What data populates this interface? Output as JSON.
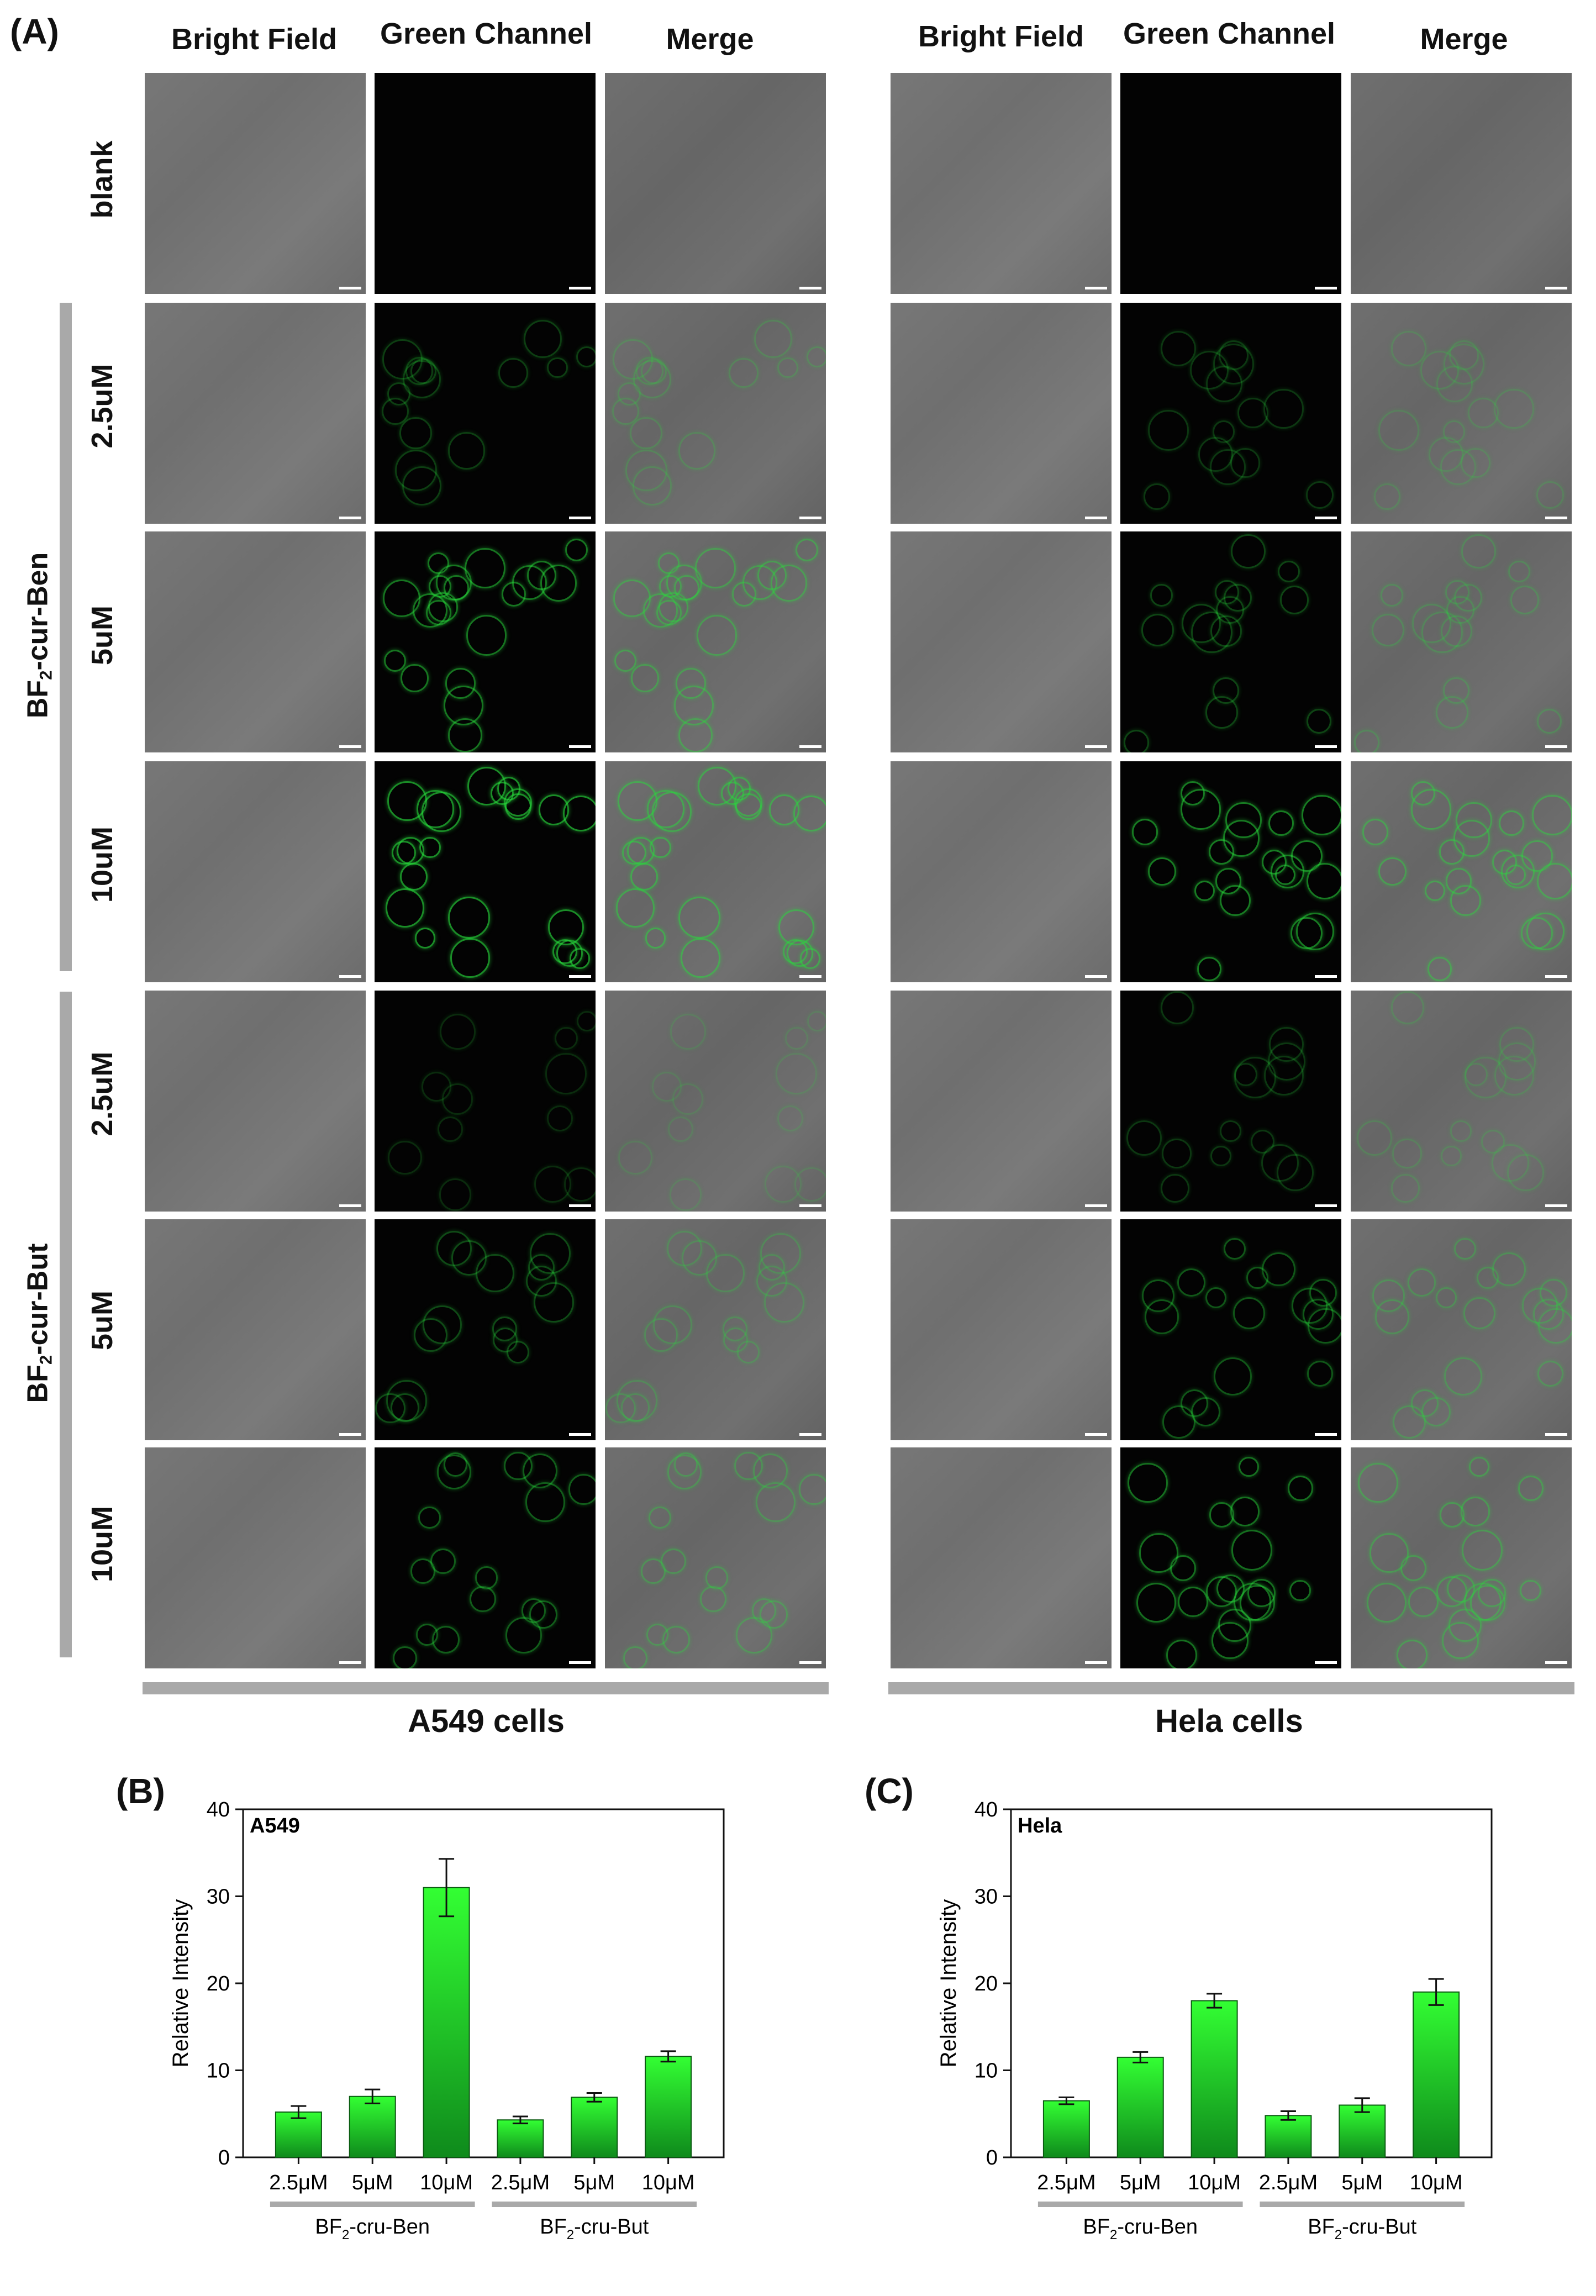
{
  "figure": {
    "panel_a_label": "(A)",
    "panel_b_label": "(B)",
    "panel_c_label": "(C)",
    "column_headers": [
      "Bright Field",
      "Green Channel",
      "Merge"
    ],
    "row_labels": [
      "blank",
      "2.5uM",
      "5uM",
      "10uM",
      "2.5uM",
      "5uM",
      "10uM"
    ],
    "group_labels": [
      {
        "prefix": "BF",
        "sub": "2",
        "suffix": "-cur-Ben"
      },
      {
        "prefix": "BF",
        "sub": "2",
        "suffix": "-cur-But"
      }
    ],
    "cell_labels": [
      "A549 cells",
      "Hela cells"
    ],
    "green_intensity": {
      "A549": [
        0,
        0.35,
        0.8,
        1.0,
        0.2,
        0.45,
        0.6
      ],
      "Hela": [
        0,
        0.3,
        0.4,
        0.85,
        0.3,
        0.55,
        0.75
      ]
    }
  },
  "chart_data": [
    {
      "type": "bar",
      "title": "A549",
      "ylabel": "Relative Intensity",
      "ylim": [
        0,
        40
      ],
      "yticks": [
        0,
        10,
        20,
        30,
        40
      ],
      "categories": [
        "2.5μM",
        "5μM",
        "10μM",
        "2.5μM",
        "5μM",
        "10μM"
      ],
      "groups": [
        {
          "prefix": "BF",
          "sub": "2",
          "suffix": "-cru-Ben"
        },
        {
          "prefix": "BF",
          "sub": "2",
          "suffix": "-cru-But"
        }
      ],
      "values": [
        5.2,
        7.0,
        31.0,
        4.3,
        6.9,
        11.6
      ],
      "errors": [
        0.7,
        0.8,
        3.3,
        0.4,
        0.5,
        0.6
      ],
      "bar_color_top": "#33ff33",
      "bar_color_bottom": "#0f8a1c"
    },
    {
      "type": "bar",
      "title": "Hela",
      "ylabel": "Relative Intensity",
      "ylim": [
        0,
        40
      ],
      "yticks": [
        0,
        10,
        20,
        30,
        40
      ],
      "categories": [
        "2.5μM",
        "5μM",
        "10μM",
        "2.5μM",
        "5μM",
        "10μM"
      ],
      "groups": [
        {
          "prefix": "BF",
          "sub": "2",
          "suffix": "-cru-Ben"
        },
        {
          "prefix": "BF",
          "sub": "2",
          "suffix": "-cru-But"
        }
      ],
      "values": [
        6.5,
        11.5,
        18.0,
        4.8,
        6.0,
        19.0
      ],
      "errors": [
        0.4,
        0.6,
        0.8,
        0.5,
        0.8,
        1.5
      ],
      "bar_color_top": "#33ff33",
      "bar_color_bottom": "#0f8a1c"
    }
  ]
}
